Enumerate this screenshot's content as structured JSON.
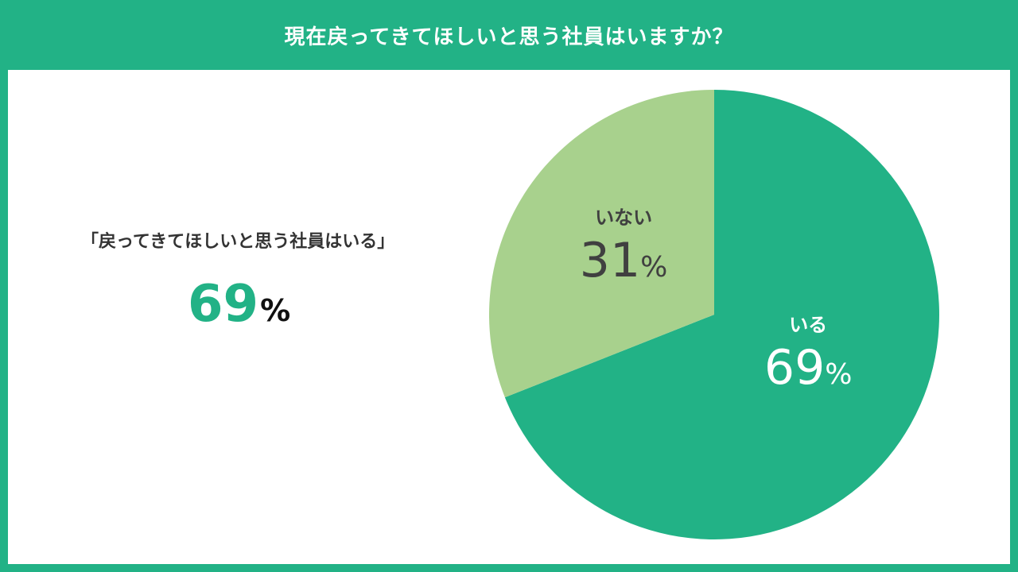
{
  "title": "現在戻ってきてほしいと思う社員はいますか？",
  "summary": {
    "caption": "「戻ってきてほしいと思う社員はいる」",
    "value": "69",
    "unit": "%"
  },
  "chart_data": {
    "type": "pie",
    "categories": [
      "いる",
      "いない"
    ],
    "values": [
      69,
      31
    ],
    "unit": "%",
    "start": "12 o'clock",
    "direction": "clockwise",
    "colors": [
      "#22b286",
      "#a8d18d"
    ],
    "label_colors": [
      "#ffffff",
      "#404040"
    ]
  }
}
